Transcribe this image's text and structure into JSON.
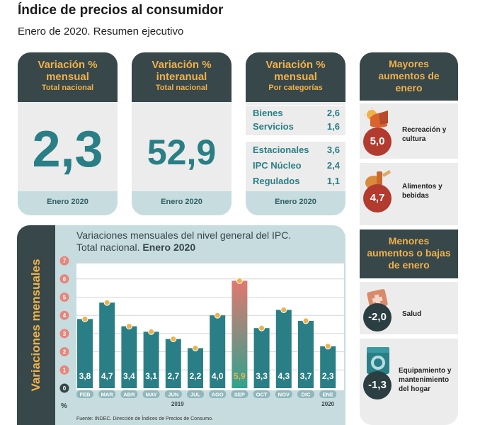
{
  "header": {
    "title": "Índice de precios al consumidor",
    "subtitle": "Enero de 2020. Resumen ejecutivo"
  },
  "cards": {
    "monthly": {
      "title": "Variación % mensual",
      "subtitle": "Total nacional",
      "value": "2,3",
      "footer": "Enero 2020"
    },
    "yearly": {
      "title": "Variación % interanual",
      "subtitle": "Total nacional",
      "value": "52,9",
      "footer": "Enero 2020"
    },
    "categories": {
      "title": "Variación % mensual",
      "subtitle": "Por categorías",
      "group1": [
        {
          "label": "Bienes",
          "value": "2,6"
        },
        {
          "label": "Servicios",
          "value": "1,6"
        }
      ],
      "group2": [
        {
          "label": "Estacionales",
          "value": "3,6"
        },
        {
          "label": "IPC Núcleo",
          "value": "2,4"
        },
        {
          "label": "Regulados",
          "value": "1,1"
        }
      ],
      "footer": "Enero 2020"
    }
  },
  "right": {
    "top_title": "Mayores aumentos de enero",
    "top": [
      {
        "value": "5,0",
        "label": "Recreación y cultura",
        "icon": "recreation-icon"
      },
      {
        "value": "4,7",
        "label": "Alimentos y bebidas",
        "icon": "food-icon"
      }
    ],
    "bottom_title": "Menores aumentos o bajas de enero",
    "bottom": [
      {
        "value": "-2,0",
        "label": "Salud",
        "icon": "health-icon"
      },
      {
        "value": "-1,3",
        "label": "Equipamiento y mantenimiento del hogar",
        "icon": "washing-machine-icon"
      }
    ]
  },
  "chart_panel": {
    "side_label": "Variaciones mensuales",
    "unit": "%",
    "title_line1": "Variaciones mensuales del nivel general del IPC.",
    "title_line2_plain": "Total nacional.",
    "title_line2_bold": "Enero 2020",
    "source": "Fuente: INDEC. Dirección de Índices de Precios de Consumo."
  },
  "chart_data": {
    "type": "bar",
    "categories": [
      "FEB",
      "MAR",
      "ABR",
      "MAY",
      "JUN",
      "JUL",
      "AGO",
      "SEP",
      "OCT",
      "NOV",
      "DIC",
      "ENE"
    ],
    "values": [
      3.8,
      4.7,
      3.4,
      3.1,
      2.7,
      2.2,
      4.0,
      5.9,
      3.3,
      4.3,
      3.7,
      2.3
    ],
    "data_labels": [
      "3,8",
      "4,7",
      "3,4",
      "3,1",
      "2,7",
      "2,2",
      "4,0",
      "5,9",
      "3,3",
      "4,3",
      "3,7",
      "2,3"
    ],
    "year_labels": [
      {
        "text": "2019",
        "category": "JUN"
      },
      {
        "text": "2020",
        "category": "ENE"
      }
    ],
    "y_ticks": [
      0,
      1,
      2,
      3,
      4,
      5,
      6,
      7
    ],
    "ylim": [
      0,
      7
    ],
    "highlight": "SEP",
    "colors": {
      "bar": "#2a7f86",
      "highlight_top": "#e07870",
      "highlight_bottom": "#2fa38e",
      "dot": "#f0b14a",
      "tick_dot": "#e8857c"
    }
  },
  "colors": {
    "dark": "#37474a",
    "accent": "#f0b14a",
    "teal": "#2a7f86",
    "light": "#c7dcdf",
    "red_circle": "#b23a2e",
    "dark_circle": "#2b3e41"
  }
}
